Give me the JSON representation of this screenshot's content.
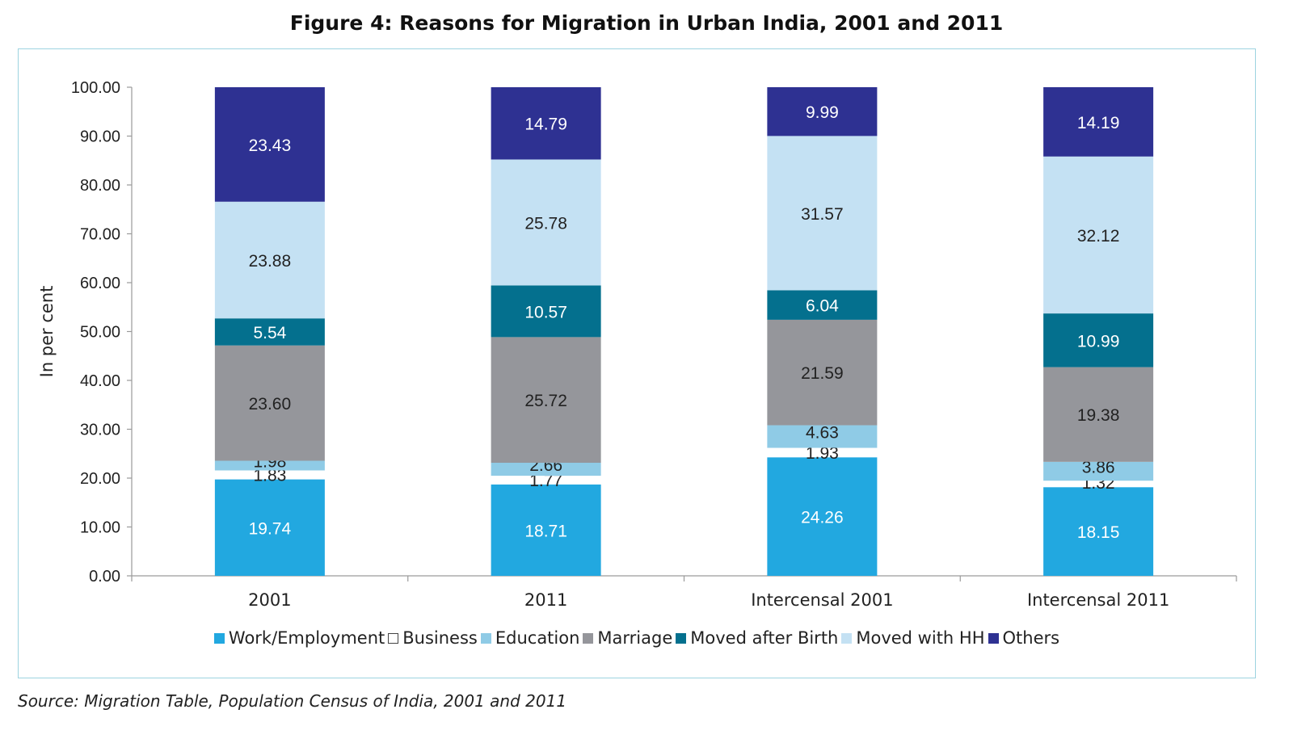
{
  "title": "Figure 4: Reasons for Migration in Urban India, 2001 and 2011",
  "source": "Source: Migration Table, Population Census of India, 2001 and 2011",
  "chart_data": {
    "type": "bar",
    "stacked": true,
    "categories": [
      "2001",
      "2011",
      "Intercensal  2001",
      "Intercensal  2011"
    ],
    "ylabel": "In per cent",
    "ylim": [
      0,
      100
    ],
    "yticks": [
      "0.00",
      "10.00",
      "20.00",
      "30.00",
      "40.00",
      "50.00",
      "60.00",
      "70.00",
      "80.00",
      "90.00",
      "100.00"
    ],
    "legend_position": "bottom",
    "grid": false,
    "series": [
      {
        "name": "Work/Employment",
        "color": "#22a8e0",
        "label_color": "#ffffff",
        "values": [
          19.74,
          18.71,
          24.26,
          18.15
        ],
        "labels": [
          "19.74",
          "18.71",
          "24.26",
          "18.15"
        ]
      },
      {
        "name": "Business",
        "color": "#ffffff",
        "label_color": "#222222",
        "values": [
          1.83,
          1.77,
          1.93,
          1.32
        ],
        "labels": [
          "1.83",
          "1.77",
          "1.93",
          "1.32"
        ]
      },
      {
        "name": "Education",
        "color": "#8fcbe6",
        "label_color": "#222222",
        "values": [
          1.98,
          2.66,
          4.63,
          3.86
        ],
        "labels": [
          "1.98",
          "2.66",
          "4.63",
          "3.86"
        ]
      },
      {
        "name": "Marriage",
        "color": "#95969b",
        "label_color": "#222222",
        "values": [
          23.6,
          25.72,
          21.59,
          19.38
        ],
        "labels": [
          "23.60",
          "25.72",
          "21.59",
          "19.38"
        ]
      },
      {
        "name": "Moved after Birth",
        "color": "#04708e",
        "label_color": "#ffffff",
        "values": [
          5.54,
          10.57,
          6.04,
          10.99
        ],
        "labels": [
          "5.54",
          "10.57",
          "6.04",
          "10.99"
        ]
      },
      {
        "name": "Moved with HH",
        "color": "#c4e1f3",
        "label_color": "#222222",
        "values": [
          23.88,
          25.78,
          31.57,
          32.12
        ],
        "labels": [
          "23.88",
          "25.78",
          "31.57",
          "32.12"
        ]
      },
      {
        "name": "Others",
        "color": "#2e3192",
        "label_color": "#ffffff",
        "values": [
          23.43,
          14.79,
          9.99,
          14.19
        ],
        "labels": [
          "23.43",
          "14.79",
          "9.99",
          "14.19"
        ]
      }
    ]
  }
}
